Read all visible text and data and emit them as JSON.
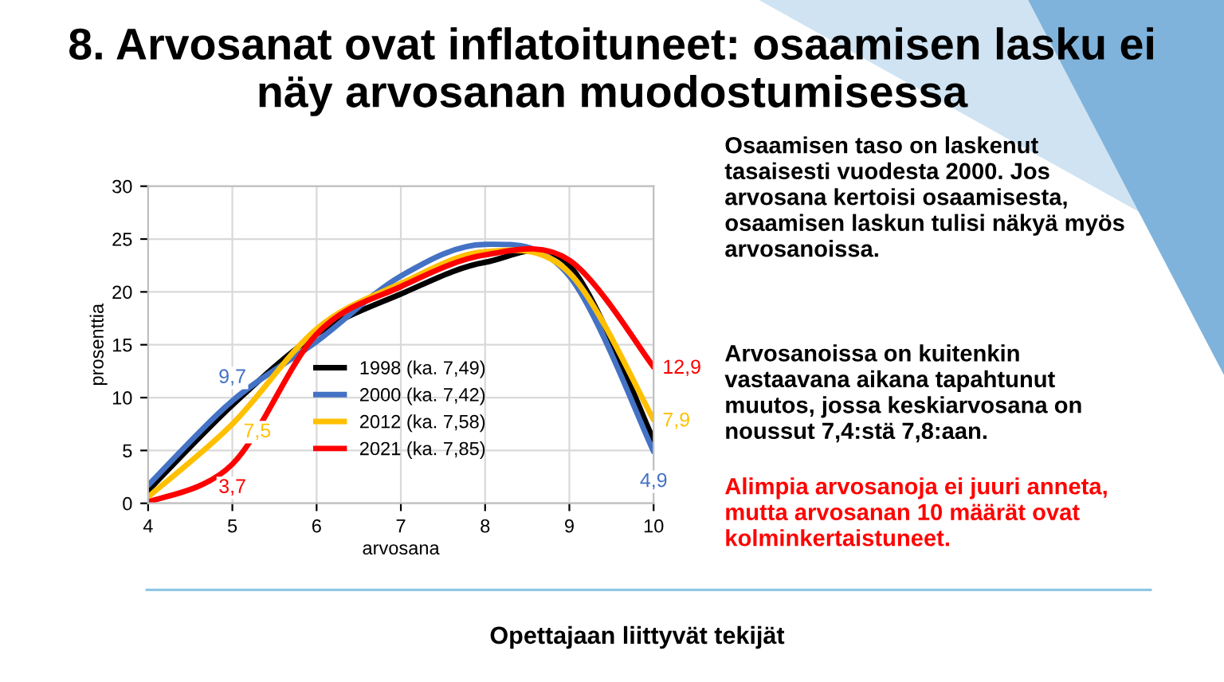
{
  "chart_data": {
    "type": "line",
    "title": "8. Arvosanat ovat inflatoituneet: osaamisen lasku ei\nnäy arvosanan muodostumisessa",
    "xlabel": "arvosana",
    "ylabel": "prosenttia",
    "x": [
      4,
      5,
      6,
      7,
      8,
      9,
      10
    ],
    "series": [
      {
        "name": "1998 (ka. 7,49)",
        "color": "#000000",
        "values": [
          1.2,
          9.3,
          16.0,
          19.8,
          22.8,
          22.5,
          6.0
        ]
      },
      {
        "name": "2000 (ka. 7,42)",
        "color": "#4472c4",
        "values": [
          1.7,
          9.7,
          15.3,
          21.5,
          24.5,
          21.5,
          4.9
        ],
        "value_labels": [
          null,
          "9,7",
          null,
          null,
          null,
          null,
          "4,9"
        ]
      },
      {
        "name": "2012 (ka. 7,58)",
        "color": "#ffc000",
        "values": [
          0.6,
          7.5,
          16.5,
          20.8,
          23.8,
          21.8,
          7.9
        ],
        "value_labels": [
          null,
          "7,5",
          null,
          null,
          null,
          null,
          "7,9"
        ]
      },
      {
        "name": "2021 (ka. 7,85)",
        "color": "#ff0000",
        "values": [
          0.1,
          3.7,
          16.0,
          20.5,
          23.5,
          23.0,
          12.9
        ],
        "value_labels": [
          null,
          "3,7",
          null,
          null,
          null,
          null,
          "12,9"
        ]
      }
    ],
    "xlim": [
      4,
      10
    ],
    "ylim": [
      0,
      30
    ],
    "xticks": [
      4,
      5,
      6,
      7,
      8,
      9,
      10
    ],
    "yticks": [
      0,
      5,
      10,
      15,
      20,
      25,
      30
    ],
    "grid": true,
    "legend": "center",
    "marker": "none",
    "line_style": "solid",
    "annotations": [
      "Osaamisen taso on laskenut\ntasaisesti vuodesta 2000. Jos\narvosana kertoisi osaamisesta,\nosaamisen laskun tulisi näkyä myös\narvosanoissa.",
      "Arvosanoissa on kuitenkin\nvastaavana aikana tapahtunut\nmuutos, jossa keskiarvosana on\nnoussut 7,4:stä 7,8:aan.",
      "Alimpia arvosanoja ei juuri anneta,\nmutta arvosanan 10 määrät ovat\nkolminkertaistuneet.",
      "Opettajaan liittyvät tekijät"
    ]
  }
}
